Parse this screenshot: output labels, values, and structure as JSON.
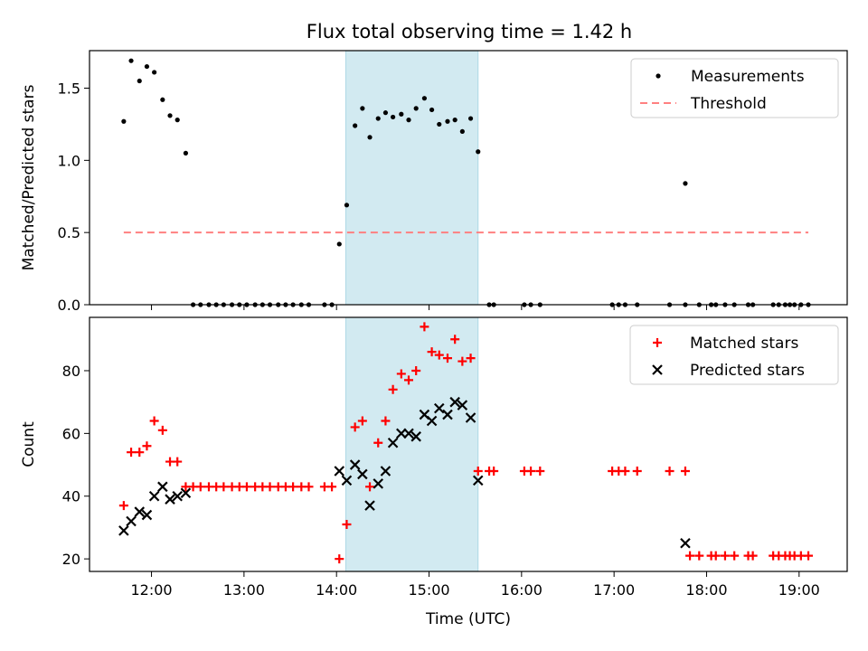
{
  "figure_title": "Flux total observing time = 1.42 h",
  "colors": {
    "highlight": "#add8e6",
    "matched": "#ff0000",
    "predicted": "#000000",
    "threshold": "#ff8080",
    "measurement": "#000000"
  },
  "chart_data": [
    {
      "type": "scatter",
      "panel": "top",
      "ylabel": "Matched/Predicted stars",
      "xlabel": "",
      "xlim": [
        11.33,
        19.52
      ],
      "ylim": [
        0,
        1.76
      ],
      "yticks": [
        0.0,
        0.5,
        1.0,
        1.5
      ],
      "ytick_labels": [
        "0.0",
        "0.5",
        "1.0",
        "1.5"
      ],
      "xticks": [
        12,
        13,
        14,
        15,
        16,
        17,
        18,
        19
      ],
      "highlight_span": [
        14.1,
        15.53
      ],
      "legend_position": "top-right",
      "series": [
        {
          "name": "Measurements",
          "marker": "dot",
          "points": [
            [
              11.7,
              1.27
            ],
            [
              11.78,
              1.69
            ],
            [
              11.87,
              1.55
            ],
            [
              11.95,
              1.65
            ],
            [
              12.03,
              1.61
            ],
            [
              12.12,
              1.42
            ],
            [
              12.2,
              1.31
            ],
            [
              12.28,
              1.28
            ],
            [
              12.37,
              1.05
            ],
            [
              12.45,
              0
            ],
            [
              12.53,
              0
            ],
            [
              12.62,
              0
            ],
            [
              12.7,
              0
            ],
            [
              12.78,
              0
            ],
            [
              12.87,
              0
            ],
            [
              12.95,
              0
            ],
            [
              13.03,
              0
            ],
            [
              13.12,
              0
            ],
            [
              13.2,
              0
            ],
            [
              13.28,
              0
            ],
            [
              13.37,
              0
            ],
            [
              13.45,
              0
            ],
            [
              13.53,
              0
            ],
            [
              13.62,
              0
            ],
            [
              13.7,
              0
            ],
            [
              13.87,
              0
            ],
            [
              13.95,
              0
            ],
            [
              14.03,
              0.42
            ],
            [
              14.11,
              0.69
            ],
            [
              14.2,
              1.24
            ],
            [
              14.28,
              1.36
            ],
            [
              14.36,
              1.16
            ],
            [
              14.45,
              1.29
            ],
            [
              14.53,
              1.33
            ],
            [
              14.61,
              1.3
            ],
            [
              14.7,
              1.32
            ],
            [
              14.78,
              1.28
            ],
            [
              14.86,
              1.36
            ],
            [
              14.95,
              1.43
            ],
            [
              15.03,
              1.35
            ],
            [
              15.11,
              1.25
            ],
            [
              15.2,
              1.27
            ],
            [
              15.28,
              1.28
            ],
            [
              15.36,
              1.2
            ],
            [
              15.45,
              1.29
            ],
            [
              15.53,
              1.06
            ],
            [
              15.65,
              0
            ],
            [
              15.7,
              0
            ],
            [
              16.03,
              0
            ],
            [
              16.1,
              0
            ],
            [
              16.2,
              0
            ],
            [
              16.98,
              0
            ],
            [
              17.05,
              0
            ],
            [
              17.12,
              0
            ],
            [
              17.25,
              0
            ],
            [
              17.6,
              0
            ],
            [
              17.77,
              0
            ],
            [
              17.77,
              0.84
            ],
            [
              17.92,
              0
            ],
            [
              18.05,
              0
            ],
            [
              18.1,
              0
            ],
            [
              18.2,
              0
            ],
            [
              18.3,
              0
            ],
            [
              18.45,
              0
            ],
            [
              18.5,
              0
            ],
            [
              18.72,
              0
            ],
            [
              18.78,
              0
            ],
            [
              18.85,
              0
            ],
            [
              18.9,
              0
            ],
            [
              18.95,
              0
            ],
            [
              19.02,
              0
            ],
            [
              19.1,
              0
            ]
          ]
        },
        {
          "name": "Threshold",
          "line": "dashed",
          "points": [
            [
              11.7,
              0.5
            ],
            [
              19.1,
              0.5
            ]
          ]
        }
      ]
    },
    {
      "type": "scatter",
      "panel": "bottom",
      "xlabel": "Time (UTC)",
      "ylabel": "Count",
      "xlim": [
        11.33,
        19.52
      ],
      "ylim": [
        16,
        97
      ],
      "yticks": [
        20,
        40,
        60,
        80
      ],
      "ytick_labels": [
        "20",
        "40",
        "60",
        "80"
      ],
      "xticks": [
        12,
        13,
        14,
        15,
        16,
        17,
        18,
        19
      ],
      "xtick_labels": [
        "12:00",
        "13:00",
        "14:00",
        "15:00",
        "16:00",
        "17:00",
        "18:00",
        "19:00"
      ],
      "highlight_span": [
        14.1,
        15.53
      ],
      "legend_position": "top-right",
      "series": [
        {
          "name": "Matched stars",
          "marker": "plus",
          "points": [
            [
              11.7,
              37
            ],
            [
              11.78,
              54
            ],
            [
              11.87,
              54
            ],
            [
              11.95,
              56
            ],
            [
              12.03,
              64
            ],
            [
              12.12,
              61
            ],
            [
              12.2,
              51
            ],
            [
              12.28,
              51
            ],
            [
              12.37,
              43
            ],
            [
              12.45,
              43
            ],
            [
              12.53,
              43
            ],
            [
              12.62,
              43
            ],
            [
              12.7,
              43
            ],
            [
              12.78,
              43
            ],
            [
              12.87,
              43
            ],
            [
              12.95,
              43
            ],
            [
              13.03,
              43
            ],
            [
              13.12,
              43
            ],
            [
              13.2,
              43
            ],
            [
              13.28,
              43
            ],
            [
              13.37,
              43
            ],
            [
              13.45,
              43
            ],
            [
              13.53,
              43
            ],
            [
              13.62,
              43
            ],
            [
              13.7,
              43
            ],
            [
              13.87,
              43
            ],
            [
              13.95,
              43
            ],
            [
              14.03,
              20
            ],
            [
              14.11,
              31
            ],
            [
              14.2,
              62
            ],
            [
              14.28,
              64
            ],
            [
              14.36,
              43
            ],
            [
              14.45,
              57
            ],
            [
              14.53,
              64
            ],
            [
              14.61,
              74
            ],
            [
              14.7,
              79
            ],
            [
              14.78,
              77
            ],
            [
              14.86,
              80
            ],
            [
              14.95,
              94
            ],
            [
              15.03,
              86
            ],
            [
              15.11,
              85
            ],
            [
              15.2,
              84
            ],
            [
              15.28,
              90
            ],
            [
              15.36,
              83
            ],
            [
              15.45,
              84
            ],
            [
              15.53,
              48
            ],
            [
              15.65,
              48
            ],
            [
              15.7,
              48
            ],
            [
              16.03,
              48
            ],
            [
              16.1,
              48
            ],
            [
              16.2,
              48
            ],
            [
              16.98,
              48
            ],
            [
              17.05,
              48
            ],
            [
              17.12,
              48
            ],
            [
              17.25,
              48
            ],
            [
              17.6,
              48
            ],
            [
              17.77,
              48
            ],
            [
              17.82,
              21
            ],
            [
              17.92,
              21
            ],
            [
              18.05,
              21
            ],
            [
              18.1,
              21
            ],
            [
              18.2,
              21
            ],
            [
              18.3,
              21
            ],
            [
              18.45,
              21
            ],
            [
              18.5,
              21
            ],
            [
              18.72,
              21
            ],
            [
              18.78,
              21
            ],
            [
              18.85,
              21
            ],
            [
              18.9,
              21
            ],
            [
              18.95,
              21
            ],
            [
              19.02,
              21
            ],
            [
              19.1,
              21
            ]
          ]
        },
        {
          "name": "Predicted stars",
          "marker": "x",
          "points": [
            [
              11.7,
              29
            ],
            [
              11.78,
              32
            ],
            [
              11.87,
              35
            ],
            [
              11.95,
              34
            ],
            [
              12.03,
              40
            ],
            [
              12.12,
              43
            ],
            [
              12.2,
              39
            ],
            [
              12.28,
              40
            ],
            [
              12.37,
              41
            ],
            [
              14.03,
              48
            ],
            [
              14.11,
              45
            ],
            [
              14.2,
              50
            ],
            [
              14.28,
              47
            ],
            [
              14.36,
              37
            ],
            [
              14.45,
              44
            ],
            [
              14.53,
              48
            ],
            [
              14.61,
              57
            ],
            [
              14.7,
              60
            ],
            [
              14.78,
              60
            ],
            [
              14.86,
              59
            ],
            [
              14.95,
              66
            ],
            [
              15.03,
              64
            ],
            [
              15.11,
              68
            ],
            [
              15.2,
              66
            ],
            [
              15.28,
              70
            ],
            [
              15.36,
              69
            ],
            [
              15.45,
              65
            ],
            [
              15.53,
              45
            ],
            [
              17.77,
              25
            ]
          ]
        }
      ]
    }
  ]
}
